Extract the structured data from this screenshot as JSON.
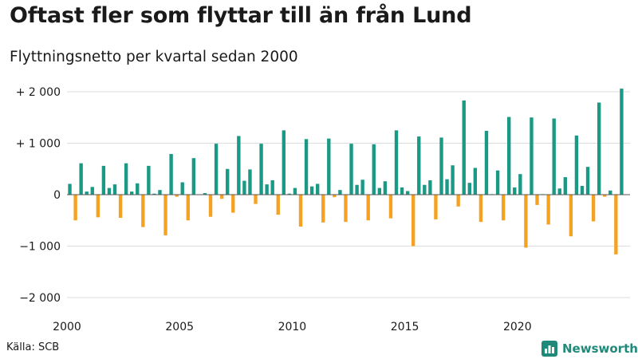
{
  "header": {
    "title": "Oftast fler som flyttar till än från Lund",
    "subtitle": "Flyttningsnetto per kvartal sedan 2000"
  },
  "footer": {
    "source": "Källa: SCB",
    "brand": "Newsworthy"
  },
  "colors": {
    "positive": "#1a9985",
    "negative": "#f5a223",
    "grid": "#dddddd",
    "brand": "#1f8a7a"
  },
  "icons": {
    "brand_logo": "bar-chart-icon"
  },
  "chart_data": {
    "type": "bar",
    "title": "Oftast fler som flyttar till än från Lund",
    "subtitle": "Flyttningsnetto per kvartal sedan 2000",
    "xlabel": "",
    "ylabel": "",
    "ylim": [
      -2000,
      2000
    ],
    "y_ticks": [
      2000,
      1000,
      0,
      -1000,
      -2000
    ],
    "y_tick_labels": [
      "+ 2 000",
      "+ 1 000",
      "0",
      "−1 000",
      "−2 000"
    ],
    "x_ticks": [
      2000,
      2005,
      2010,
      2015,
      2020
    ],
    "x_tick_labels": [
      "2000",
      "2005",
      "2010",
      "2015",
      "2020"
    ],
    "grid": true,
    "legend": "none",
    "categories": [
      "2000 Q1",
      "2000 Q2",
      "2000 Q3",
      "2000 Q4",
      "2001 Q1",
      "2001 Q2",
      "2001 Q3",
      "2001 Q4",
      "2002 Q1",
      "2002 Q2",
      "2002 Q3",
      "2002 Q4",
      "2003 Q1",
      "2003 Q2",
      "2003 Q3",
      "2003 Q4",
      "2004 Q1",
      "2004 Q2",
      "2004 Q3",
      "2004 Q4",
      "2005 Q1",
      "2005 Q2",
      "2005 Q3",
      "2005 Q4",
      "2006 Q1",
      "2006 Q2",
      "2006 Q3",
      "2006 Q4",
      "2007 Q1",
      "2007 Q2",
      "2007 Q3",
      "2007 Q4",
      "2008 Q1",
      "2008 Q2",
      "2008 Q3",
      "2008 Q4",
      "2009 Q1",
      "2009 Q2",
      "2009 Q3",
      "2009 Q4",
      "2010 Q1",
      "2010 Q2",
      "2010 Q3",
      "2010 Q4",
      "2011 Q1",
      "2011 Q2",
      "2011 Q3",
      "2011 Q4",
      "2012 Q1",
      "2012 Q2",
      "2012 Q3",
      "2012 Q4",
      "2013 Q1",
      "2013 Q2",
      "2013 Q3",
      "2013 Q4",
      "2014 Q1",
      "2014 Q2",
      "2014 Q3",
      "2014 Q4",
      "2015 Q1",
      "2015 Q2",
      "2015 Q3",
      "2015 Q4",
      "2016 Q1",
      "2016 Q2",
      "2016 Q3",
      "2016 Q4",
      "2017 Q1",
      "2017 Q2",
      "2017 Q3",
      "2017 Q4",
      "2018 Q1",
      "2018 Q2",
      "2018 Q3",
      "2018 Q4",
      "2019 Q1",
      "2019 Q2",
      "2019 Q3",
      "2019 Q4",
      "2020 Q1",
      "2020 Q2",
      "2020 Q3",
      "2020 Q4",
      "2021 Q1",
      "2021 Q2",
      "2021 Q3",
      "2021 Q4",
      "2022 Q1",
      "2022 Q2",
      "2022 Q3",
      "2022 Q4",
      "2023 Q1",
      "2023 Q2",
      "2023 Q3",
      "2023 Q4",
      "2024 Q1",
      "2024 Q2",
      "2024 Q3",
      "2024 Q4"
    ],
    "values": [
      210,
      -500,
      610,
      60,
      150,
      -440,
      560,
      130,
      200,
      -450,
      610,
      60,
      220,
      -630,
      560,
      20,
      90,
      -790,
      790,
      -40,
      240,
      -500,
      710,
      0,
      30,
      -430,
      990,
      -80,
      500,
      -350,
      1140,
      270,
      490,
      -180,
      990,
      200,
      280,
      -390,
      1250,
      20,
      130,
      -620,
      1080,
      160,
      210,
      -540,
      1090,
      -50,
      90,
      -530,
      990,
      190,
      290,
      -500,
      980,
      130,
      260,
      -460,
      1250,
      140,
      70,
      -1000,
      1130,
      190,
      280,
      -480,
      1110,
      300,
      570,
      -230,
      1830,
      230,
      520,
      -530,
      1240,
      10,
      470,
      -500,
      1510,
      140,
      400,
      -1030,
      1500,
      -200,
      10,
      -580,
      1480,
      120,
      340,
      -810,
      1150,
      170,
      540,
      -520,
      1790,
      -40,
      80,
      -1160,
      2060,
      0
    ]
  }
}
